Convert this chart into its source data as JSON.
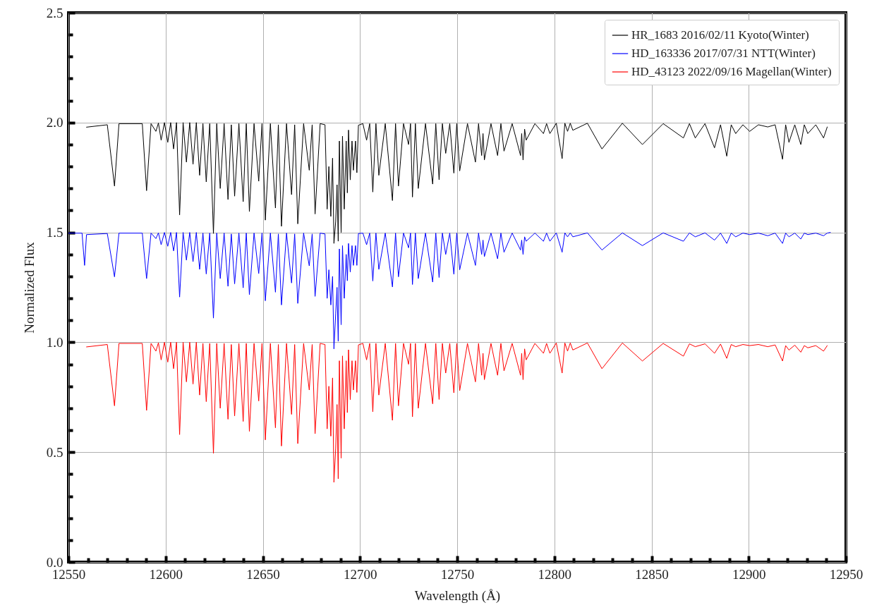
{
  "chart_data": {
    "type": "line",
    "xlabel": "Wavelength (Å)",
    "ylabel": "Normalized Flux",
    "xlim": [
      12550,
      12950
    ],
    "ylim": [
      0,
      2.5
    ],
    "xticks": [
      12550,
      {
        "value": 12560,
        "label": null
      },
      {
        "value": 12570,
        "label": null
      },
      {
        "value": 12580,
        "label": null
      },
      {
        "value": 12590,
        "label": null
      },
      12600,
      {
        "value": 12610,
        "label": null
      },
      {
        "value": 12620,
        "label": null
      },
      {
        "value": 12630,
        "label": null
      },
      {
        "value": 12640,
        "label": null
      },
      12650,
      {
        "value": 12660,
        "label": null
      },
      {
        "value": 12670,
        "label": null
      },
      {
        "value": 12680,
        "label": null
      },
      {
        "value": 12690,
        "label": null
      },
      12700,
      {
        "value": 12710,
        "label": null
      },
      {
        "value": 12720,
        "label": null
      },
      {
        "value": 12730,
        "label": null
      },
      {
        "value": 12740,
        "label": null
      },
      12750,
      {
        "value": 12760,
        "label": null
      },
      {
        "value": 12770,
        "label": null
      },
      {
        "value": 12780,
        "label": null
      },
      {
        "value": 12790,
        "label": null
      },
      12800,
      {
        "value": 12810,
        "label": null
      },
      {
        "value": 12820,
        "label": null
      },
      {
        "value": 12830,
        "label": null
      },
      {
        "value": 12840,
        "label": null
      },
      12850,
      {
        "value": 12860,
        "label": null
      },
      {
        "value": 12870,
        "label": null
      },
      {
        "value": 12880,
        "label": null
      },
      {
        "value": 12890,
        "label": null
      },
      12900,
      {
        "value": 12910,
        "label": null
      },
      {
        "value": 12920,
        "label": null
      },
      {
        "value": 12930,
        "label": null
      },
      {
        "value": 12940,
        "label": null
      },
      12950
    ],
    "yticks": [
      {
        "value": 0,
        "label": "0.0"
      },
      {
        "value": 0.1,
        "label": null
      },
      {
        "value": 0.2,
        "label": null
      },
      {
        "value": 0.3,
        "label": null
      },
      {
        "value": 0.4,
        "label": null
      },
      0.5,
      {
        "value": 0.6,
        "label": null
      },
      {
        "value": 0.7,
        "label": null
      },
      {
        "value": 0.8,
        "label": null
      },
      {
        "value": 0.9,
        "label": null
      },
      {
        "value": 1,
        "label": "1.0"
      },
      {
        "value": 1.1,
        "label": null
      },
      {
        "value": 1.2,
        "label": null
      },
      {
        "value": 1.3,
        "label": null
      },
      {
        "value": 1.4,
        "label": null
      },
      1.5,
      {
        "value": 1.6,
        "label": null
      },
      {
        "value": 1.7,
        "label": null
      },
      {
        "value": 1.8,
        "label": null
      },
      {
        "value": 1.9,
        "label": null
      },
      {
        "value": 2,
        "label": "2.0"
      },
      {
        "value": 2.1,
        "label": null
      },
      {
        "value": 2.2,
        "label": null
      },
      {
        "value": 2.3,
        "label": null
      },
      {
        "value": 2.4,
        "label": null
      },
      2.5
    ],
    "grid": true,
    "legend": "top right",
    "line_style": "solid",
    "x": [
      12559.3,
      12570,
      12573.7,
      12576,
      12588,
      12590.2,
      12592.5,
      12595.0,
      12596.3,
      12597.7,
      12599.4,
      12601.1,
      12602.6,
      12604.1,
      12605.6,
      12607.2,
      12609,
      12610.7,
      12612.4,
      12614.1,
      12615.8,
      12617.5,
      12619.2,
      12620.9,
      12622.7,
      12624.6,
      12626.3,
      12628.1,
      12630.1,
      12632.1,
      12633.8,
      12635.5,
      12637.7,
      12639.9,
      12641.5,
      12643.1,
      12645.5,
      12647.9,
      12649.6,
      12651.3,
      12653.9,
      12656.5,
      12658,
      12659.6,
      12662.2,
      12664.8,
      12666.4,
      12668.0,
      12671,
      12673.9,
      12675.4,
      12676.9,
      12679.5,
      12682,
      12683.1,
      12684.0,
      12685.0,
      12685.9,
      12686.6,
      12687.5,
      12688.2,
      12688.8,
      12689.4,
      12690.3,
      12691.0,
      12691.9,
      12692.9,
      12693.5,
      12694.1,
      12695.0,
      12695.9,
      12696.6,
      12697.7,
      12698.4,
      12699.2,
      12701.5,
      12703.4,
      12705,
      12706.6,
      12708.2,
      12709.7,
      12713,
      12716.7,
      12718.3,
      12719.8,
      12722.4,
      12725.0,
      12726,
      12727.0,
      12728.5,
      12730.0,
      12733.7,
      12737.4,
      12739,
      12740.7,
      12742.4,
      12744.1,
      12746.2,
      12748.3,
      12749.8,
      12751.3,
      12755.3,
      12759.4,
      12761,
      12762.6,
      12763.3,
      12764.0,
      12767.4,
      12770.8,
      12772.5,
      12774.1,
      12778.3,
      12782.6,
      12783.2,
      12783.9,
      12784.7,
      12785.5,
      12790,
      12794.4,
      12796,
      12797.7,
      12801,
      12804.0,
      12805.4,
      12806.8,
      12808.2,
      12809.5,
      12817,
      12824.5,
      12835,
      12845.3,
      12856,
      12866.4,
      12869.5,
      12872.5,
      12877.5,
      12882.4,
      12885.5,
      12888.7,
      12891,
      12893.3,
      12897,
      12900.5,
      12905,
      12909.8,
      12913.6,
      12917.4,
      12919,
      12920.7,
      12923.7,
      12926.8,
      12928.6,
      12930.4,
      12934.5,
      12938.5,
      12940.4
    ],
    "series": [
      {
        "name": "HR_1683 2016/02/11 Kyoto(Winter)",
        "color": "#000000",
        "values": [
          1.979,
          1.99,
          1.711,
          1.995,
          1.995,
          1.69,
          1.995,
          1.96,
          1.998,
          1.92,
          2.0,
          1.91,
          2.0,
          1.88,
          2.0,
          1.58,
          2.0,
          1.82,
          2.0,
          1.81,
          2.0,
          1.76,
          1.995,
          1.73,
          1.995,
          1.495,
          1.995,
          1.7,
          1.995,
          1.65,
          1.99,
          1.665,
          1.995,
          1.64,
          1.995,
          1.595,
          1.995,
          1.733,
          1.995,
          1.556,
          1.995,
          1.611,
          1.99,
          1.528,
          1.995,
          1.672,
          1.99,
          1.539,
          1.995,
          1.783,
          1.99,
          1.584,
          1.995,
          1.99,
          1.606,
          1.8,
          1.573,
          1.838,
          1.45,
          1.55,
          1.717,
          1.46,
          1.916,
          1.5,
          1.938,
          1.606,
          1.916,
          1.68,
          1.966,
          1.739,
          1.916,
          1.783,
          1.916,
          1.772,
          1.988,
          1.995,
          1.92,
          1.995,
          1.684,
          1.995,
          1.76,
          1.995,
          1.645,
          1.995,
          1.711,
          1.995,
          1.9,
          1.995,
          1.661,
          1.995,
          1.7,
          1.995,
          1.72,
          1.995,
          1.74,
          1.995,
          1.86,
          1.995,
          1.77,
          1.995,
          1.78,
          1.995,
          1.82,
          1.995,
          1.85,
          1.95,
          1.83,
          1.995,
          1.85,
          1.995,
          1.87,
          1.995,
          1.85,
          1.95,
          1.83,
          1.97,
          1.92,
          1.995,
          1.95,
          1.995,
          1.95,
          1.997,
          1.836,
          1.997,
          1.96,
          1.997,
          1.965,
          1.997,
          1.88,
          1.997,
          1.9,
          1.995,
          1.93,
          1.995,
          1.93,
          1.995,
          1.885,
          1.99,
          1.847,
          1.99,
          1.95,
          1.99,
          1.96,
          1.99,
          1.98,
          1.99,
          1.833,
          1.99,
          1.91,
          1.99,
          1.9,
          1.99,
          1.95,
          1.99,
          1.93,
          1.98
        ]
      },
      {
        "name": "HD_163336 2017/07/31 NTT(Winter)",
        "color": "#0000ff",
        "x": [
          12550,
          12557,
          12558.3,
          12559.3,
          12570,
          12573.7,
          12576,
          12588,
          12590.2,
          12592.5,
          12595.0,
          12596.3,
          12597.7,
          12599.4,
          12601.1,
          12602.6,
          12604.1,
          12605.6,
          12607.2,
          12609,
          12610.7,
          12612.4,
          12614.1,
          12615.8,
          12617.5,
          12619.2,
          12620.9,
          12622.7,
          12624.6,
          12626.3,
          12628.1,
          12630.1,
          12632.1,
          12633.8,
          12635.5,
          12637.7,
          12639.9,
          12641.5,
          12643.1,
          12645.5,
          12647.9,
          12649.6,
          12651.3,
          12653.9,
          12656.5,
          12658,
          12659.6,
          12662.2,
          12664.8,
          12666.4,
          12668.0,
          12671,
          12673.9,
          12675.4,
          12676.9,
          12679.5,
          12682,
          12683.1,
          12684.0,
          12685.0,
          12685.9,
          12686.6,
          12687.5,
          12688.2,
          12688.8,
          12689.4,
          12690.3,
          12691.0,
          12691.9,
          12692.9,
          12693.5,
          12694.1,
          12695.0,
          12695.9,
          12696.6,
          12697.7,
          12698.4,
          12699.2,
          12701.5,
          12703.4,
          12705,
          12706.6,
          12708.2,
          12709.7,
          12713,
          12716.7,
          12718.3,
          12719.8,
          12722.4,
          12725.0,
          12726,
          12727.0,
          12728.5,
          12730.0,
          12733.7,
          12737.4,
          12739,
          12740.7,
          12742.4,
          12744.1,
          12746.2,
          12748.3,
          12749.8,
          12751.3,
          12755.3,
          12759.4,
          12761,
          12762.6,
          12763.3,
          12764.0,
          12767.4,
          12770.8,
          12772.5,
          12774.1,
          12778.3,
          12782.6,
          12783.2,
          12783.9,
          12784.7,
          12785.5,
          12790,
          12794.4,
          12796,
          12797.7,
          12801,
          12804.0,
          12805.4,
          12806.8,
          12808.2,
          12809.5,
          12817,
          12824.5,
          12835,
          12845.3,
          12856,
          12866.4,
          12869.5,
          12872.5,
          12877.5,
          12882.4,
          12885.5,
          12888.7,
          12891,
          12893.3,
          12897,
          12900.5,
          12905,
          12909.8,
          12913.6,
          12917.4,
          12919,
          12920.7,
          12923.7,
          12926.8,
          12928.6,
          12930.4,
          12934.5,
          12938.5,
          12940.4,
          12942
        ],
        "values": [
          1.497,
          1.497,
          1.35,
          1.49,
          1.495,
          1.298,
          1.497,
          1.497,
          1.29,
          1.497,
          1.472,
          1.498,
          1.444,
          1.5,
          1.437,
          1.5,
          1.416,
          1.5,
          1.206,
          1.5,
          1.374,
          1.5,
          1.367,
          1.5,
          1.332,
          1.497,
          1.311,
          1.497,
          1.11,
          1.497,
          1.29,
          1.497,
          1.255,
          1.493,
          1.266,
          1.497,
          1.248,
          1.497,
          1.217,
          1.497,
          1.313,
          1.497,
          1.189,
          1.497,
          1.228,
          1.493,
          1.17,
          1.497,
          1.27,
          1.493,
          1.177,
          1.497,
          1.348,
          1.493,
          1.209,
          1.497,
          1.493,
          1.2,
          1.33,
          1.17,
          1.3,
          0.97,
          1.13,
          1.25,
          1.005,
          1.425,
          1.08,
          1.44,
          1.2,
          1.4,
          1.28,
          1.45,
          1.32,
          1.44,
          1.35,
          1.44,
          1.35,
          1.495,
          1.497,
          1.444,
          1.497,
          1.279,
          1.497,
          1.332,
          1.497,
          1.252,
          1.497,
          1.298,
          1.497,
          1.43,
          1.497,
          1.263,
          1.497,
          1.29,
          1.497,
          1.274,
          1.497,
          1.295,
          1.497,
          1.4,
          1.497,
          1.31,
          1.497,
          1.33,
          1.497,
          1.35,
          1.497,
          1.4,
          1.465,
          1.39,
          1.497,
          1.38,
          1.497,
          1.41,
          1.497,
          1.42,
          1.465,
          1.4,
          1.48,
          1.46,
          1.497,
          1.46,
          1.497,
          1.46,
          1.498,
          1.41,
          1.498,
          1.48,
          1.498,
          1.48,
          1.498,
          1.42,
          1.498,
          1.44,
          1.498,
          1.46,
          1.498,
          1.48,
          1.498,
          1.465,
          1.497,
          1.45,
          1.497,
          1.48,
          1.497,
          1.49,
          1.497,
          1.485,
          1.497,
          1.45,
          1.497,
          1.48,
          1.497,
          1.47,
          1.497,
          1.49,
          1.497,
          1.485,
          1.497,
          1.5
        ]
      },
      {
        "name": "HD_43123 2022/09/16 Magellan(Winter)",
        "color": "#ff0000",
        "values": [
          0.979,
          0.99,
          0.711,
          0.995,
          0.995,
          0.69,
          0.995,
          0.96,
          0.998,
          0.92,
          1.0,
          0.91,
          1.0,
          0.88,
          1.0,
          0.58,
          1.0,
          0.82,
          1.0,
          0.81,
          1.0,
          0.76,
          0.995,
          0.73,
          0.995,
          0.495,
          0.995,
          0.7,
          0.995,
          0.65,
          0.99,
          0.665,
          0.995,
          0.64,
          0.995,
          0.595,
          0.995,
          0.733,
          0.995,
          0.556,
          0.995,
          0.611,
          0.99,
          0.528,
          0.995,
          0.672,
          0.99,
          0.539,
          0.995,
          0.783,
          0.99,
          0.584,
          0.995,
          0.99,
          0.606,
          0.8,
          0.573,
          0.838,
          0.363,
          0.517,
          0.717,
          0.379,
          0.916,
          0.473,
          0.938,
          0.606,
          0.916,
          0.68,
          0.966,
          0.739,
          0.916,
          0.783,
          0.916,
          0.772,
          0.988,
          0.995,
          0.92,
          0.995,
          0.684,
          0.995,
          0.76,
          0.995,
          0.645,
          0.995,
          0.711,
          0.995,
          0.9,
          0.995,
          0.661,
          0.995,
          0.7,
          0.995,
          0.72,
          0.995,
          0.74,
          0.995,
          0.86,
          0.995,
          0.77,
          0.995,
          0.78,
          0.995,
          0.82,
          0.995,
          0.85,
          0.95,
          0.83,
          0.995,
          0.85,
          0.995,
          0.87,
          0.995,
          0.85,
          0.95,
          0.83,
          0.97,
          0.92,
          0.995,
          0.95,
          0.995,
          0.95,
          0.997,
          0.86,
          0.997,
          0.96,
          0.997,
          0.965,
          0.997,
          0.88,
          0.997,
          0.915,
          0.995,
          0.937,
          0.993,
          0.98,
          0.993,
          0.95,
          0.992,
          0.927,
          0.99,
          0.98,
          0.99,
          0.985,
          0.99,
          0.98,
          0.988,
          0.915,
          0.985,
          0.965,
          0.987,
          0.955,
          0.985,
          0.975,
          0.985,
          0.96,
          0.985
        ]
      }
    ]
  }
}
